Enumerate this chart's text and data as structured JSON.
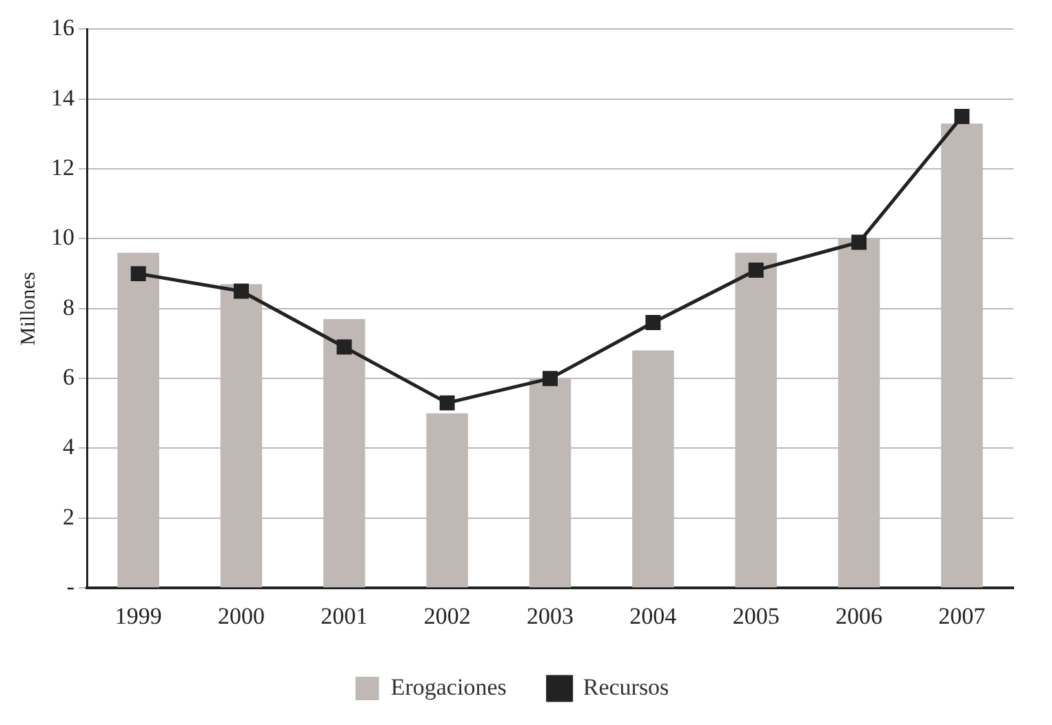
{
  "chart_data": {
    "type": "bar",
    "ylabel": "Millones",
    "categories": [
      "1999",
      "2000",
      "2001",
      "2002",
      "2003",
      "2004",
      "2005",
      "2006",
      "2007"
    ],
    "series": [
      {
        "name": "Erogaciones",
        "color": "#bfb8b5",
        "values": [
          9.6,
          8.7,
          7.7,
          5.0,
          6.0,
          6.8,
          9.6,
          10.0,
          13.3
        ]
      },
      {
        "name": "Recursos",
        "type": "line",
        "color": "#222222",
        "marker": "square",
        "values": [
          9.0,
          8.5,
          6.9,
          5.3,
          6.0,
          7.6,
          9.1,
          9.9,
          13.5
        ]
      }
    ],
    "ylim": [
      0,
      16
    ],
    "yticks": [
      {
        "value": 0,
        "label": "-"
      },
      2,
      4,
      6,
      8,
      10,
      12,
      14,
      16
    ],
    "grid": "y",
    "legend": "bottom"
  }
}
